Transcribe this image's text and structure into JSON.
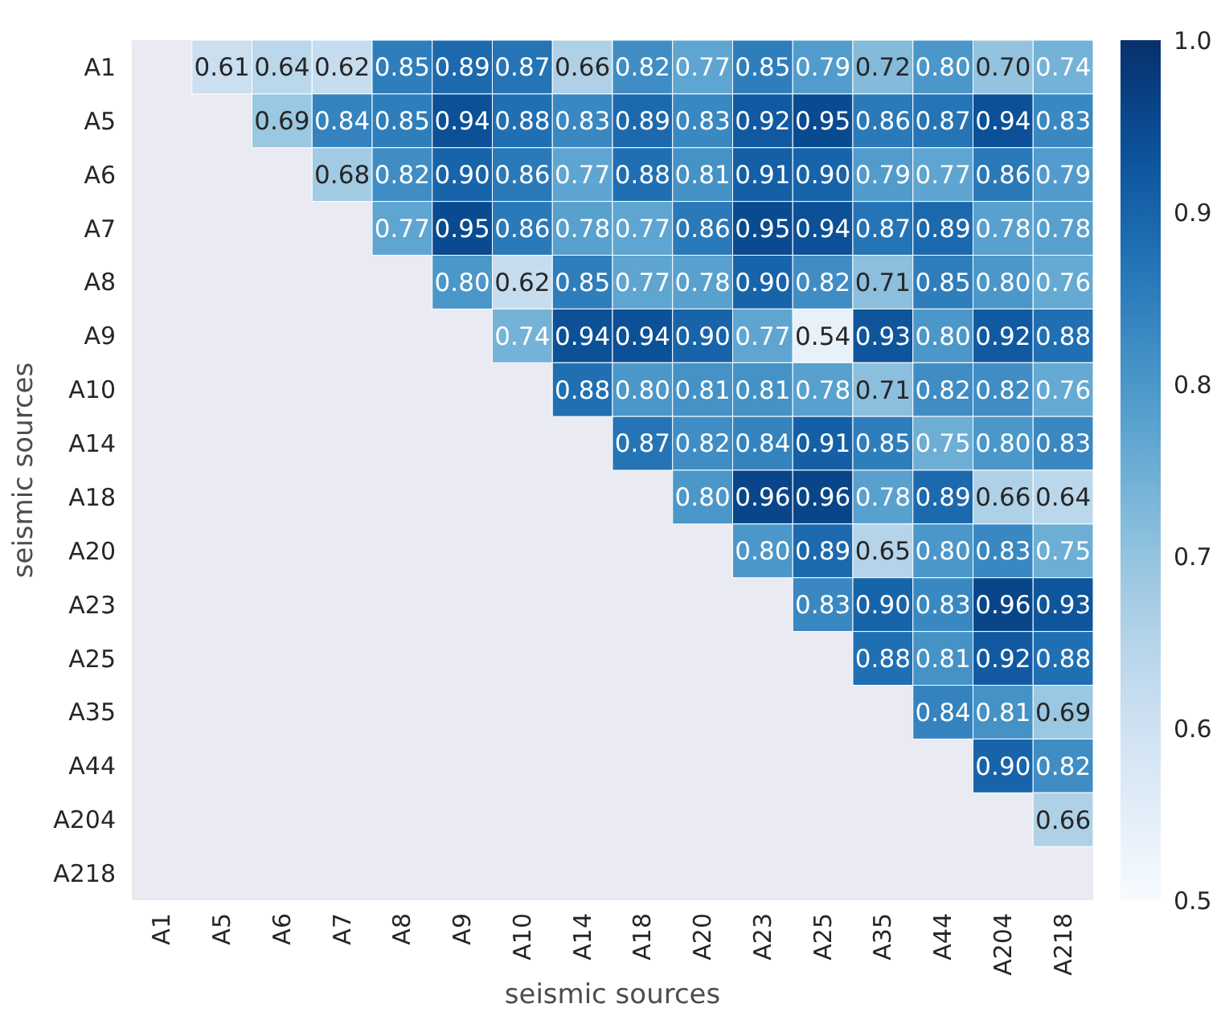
{
  "chart_data": {
    "type": "heatmap",
    "xlabel": "seismic sources",
    "ylabel": "seismic sources",
    "categories": [
      "A1",
      "A5",
      "A6",
      "A7",
      "A8",
      "A9",
      "A10",
      "A14",
      "A18",
      "A20",
      "A23",
      "A25",
      "A35",
      "A44",
      "A204",
      "A218"
    ],
    "y_categories": [
      "A1",
      "A5",
      "A6",
      "A7",
      "A8",
      "A9",
      "A10",
      "A14",
      "A18",
      "A20",
      "A23",
      "A25",
      "A35",
      "A44",
      "A204",
      "A218"
    ],
    "cells": [
      [
        null,
        0.61,
        0.64,
        0.62,
        0.85,
        0.89,
        0.87,
        0.66,
        0.82,
        0.77,
        0.85,
        0.79,
        0.72,
        0.8,
        0.7,
        0.74
      ],
      [
        null,
        null,
        0.69,
        0.84,
        0.85,
        0.94,
        0.88,
        0.83,
        0.89,
        0.83,
        0.92,
        0.95,
        0.86,
        0.87,
        0.94,
        0.83
      ],
      [
        null,
        null,
        null,
        0.68,
        0.82,
        0.9,
        0.86,
        0.77,
        0.88,
        0.81,
        0.91,
        0.9,
        0.79,
        0.77,
        0.86,
        0.79
      ],
      [
        null,
        null,
        null,
        null,
        0.77,
        0.95,
        0.86,
        0.78,
        0.77,
        0.86,
        0.95,
        0.94,
        0.87,
        0.89,
        0.78,
        0.78
      ],
      [
        null,
        null,
        null,
        null,
        null,
        0.8,
        0.62,
        0.85,
        0.77,
        0.78,
        0.9,
        0.82,
        0.71,
        0.85,
        0.8,
        0.76
      ],
      [
        null,
        null,
        null,
        null,
        null,
        null,
        0.74,
        0.94,
        0.94,
        0.9,
        0.77,
        0.54,
        0.93,
        0.8,
        0.92,
        0.88
      ],
      [
        null,
        null,
        null,
        null,
        null,
        null,
        null,
        0.88,
        0.8,
        0.81,
        0.81,
        0.78,
        0.71,
        0.82,
        0.82,
        0.76
      ],
      [
        null,
        null,
        null,
        null,
        null,
        null,
        null,
        null,
        0.87,
        0.82,
        0.84,
        0.91,
        0.85,
        0.75,
        0.8,
        0.83
      ],
      [
        null,
        null,
        null,
        null,
        null,
        null,
        null,
        null,
        null,
        0.8,
        0.96,
        0.96,
        0.78,
        0.89,
        0.66,
        0.64
      ],
      [
        null,
        null,
        null,
        null,
        null,
        null,
        null,
        null,
        null,
        null,
        0.8,
        0.89,
        0.65,
        0.8,
        0.83,
        0.75
      ],
      [
        null,
        null,
        null,
        null,
        null,
        null,
        null,
        null,
        null,
        null,
        null,
        0.83,
        0.9,
        0.83,
        0.96,
        0.93
      ],
      [
        null,
        null,
        null,
        null,
        null,
        null,
        null,
        null,
        null,
        null,
        null,
        null,
        0.88,
        0.81,
        0.92,
        0.88
      ],
      [
        null,
        null,
        null,
        null,
        null,
        null,
        null,
        null,
        null,
        null,
        null,
        null,
        null,
        0.84,
        0.81,
        0.69
      ],
      [
        null,
        null,
        null,
        null,
        null,
        null,
        null,
        null,
        null,
        null,
        null,
        null,
        null,
        null,
        0.9,
        0.82
      ],
      [
        null,
        null,
        null,
        null,
        null,
        null,
        null,
        null,
        null,
        null,
        null,
        null,
        null,
        null,
        null,
        0.66
      ],
      [
        null,
        null,
        null,
        null,
        null,
        null,
        null,
        null,
        null,
        null,
        null,
        null,
        null,
        null,
        null,
        null
      ]
    ],
    "clim": [
      0.5,
      1.0
    ],
    "cticks": [
      {
        "value": 0.5,
        "label": "0.5"
      },
      {
        "value": 0.6,
        "label": "0.6"
      },
      {
        "value": 0.7,
        "label": "0.7"
      },
      {
        "value": 0.8,
        "label": "0.8"
      },
      {
        "value": 0.9,
        "label": "0.9"
      },
      {
        "value": 1.0,
        "label": "1.0"
      }
    ],
    "cell_labels": [
      [
        null,
        "0.61",
        "0.64",
        "0.62",
        "0.85",
        "0.89",
        "0.87",
        "0.66",
        "0.82",
        "0.77",
        "0.85",
        "0.79",
        "0.72",
        "0.80",
        "0.70",
        "0.74"
      ],
      [
        null,
        null,
        "0.69",
        "0.84",
        "0.85",
        "0.94",
        "0.88",
        "0.83",
        "0.89",
        "0.83",
        "0.92",
        "0.95",
        "0.86",
        "0.87",
        "0.94",
        "0.83"
      ],
      [
        null,
        null,
        null,
        "0.68",
        "0.82",
        "0.90",
        "0.86",
        "0.77",
        "0.88",
        "0.81",
        "0.91",
        "0.90",
        "0.79",
        "0.77",
        "0.86",
        "0.79"
      ],
      [
        null,
        null,
        null,
        null,
        "0.77",
        "0.95",
        "0.86",
        "0.78",
        "0.77",
        "0.86",
        "0.95",
        "0.94",
        "0.87",
        "0.89",
        "0.78",
        "0.78"
      ],
      [
        null,
        null,
        null,
        null,
        null,
        "0.80",
        "0.62",
        "0.85",
        "0.77",
        "0.78",
        "0.90",
        "0.82",
        "0.71",
        "0.85",
        "0.80",
        "0.76"
      ],
      [
        null,
        null,
        null,
        null,
        null,
        null,
        "0.74",
        "0.94",
        "0.94",
        "0.90",
        "0.77",
        "0.54",
        "0.93",
        "0.80",
        "0.92",
        "0.88"
      ],
      [
        null,
        null,
        null,
        null,
        null,
        null,
        null,
        "0.88",
        "0.80",
        "0.81",
        "0.81",
        "0.78",
        "0.71",
        "0.82",
        "0.82",
        "0.76"
      ],
      [
        null,
        null,
        null,
        null,
        null,
        null,
        null,
        null,
        "0.87",
        "0.82",
        "0.84",
        "0.91",
        "0.85",
        "0.75",
        "0.80",
        "0.83"
      ],
      [
        null,
        null,
        null,
        null,
        null,
        null,
        null,
        null,
        null,
        "0.80",
        "0.96",
        "0.96",
        "0.78",
        "0.89",
        "0.66",
        "0.64"
      ],
      [
        null,
        null,
        null,
        null,
        null,
        null,
        null,
        null,
        null,
        null,
        "0.80",
        "0.89",
        "0.65",
        "0.80",
        "0.83",
        "0.75"
      ],
      [
        null,
        null,
        null,
        null,
        null,
        null,
        null,
        null,
        null,
        null,
        null,
        "0.83",
        "0.90",
        "0.83",
        "0.96",
        "0.93"
      ],
      [
        null,
        null,
        null,
        null,
        null,
        null,
        null,
        null,
        null,
        null,
        null,
        null,
        "0.88",
        "0.81",
        "0.92",
        "0.88"
      ],
      [
        null,
        null,
        null,
        null,
        null,
        null,
        null,
        null,
        null,
        null,
        null,
        null,
        null,
        "0.84",
        "0.81",
        "0.69"
      ],
      [
        null,
        null,
        null,
        null,
        null,
        null,
        null,
        null,
        null,
        null,
        null,
        null,
        null,
        null,
        "0.90",
        "0.82"
      ],
      [
        null,
        null,
        null,
        null,
        null,
        null,
        null,
        null,
        null,
        null,
        null,
        null,
        null,
        null,
        null,
        "0.66"
      ],
      [
        null,
        null,
        null,
        null,
        null,
        null,
        null,
        null,
        null,
        null,
        null,
        null,
        null,
        null,
        null,
        null
      ]
    ],
    "data_labels": true
  }
}
